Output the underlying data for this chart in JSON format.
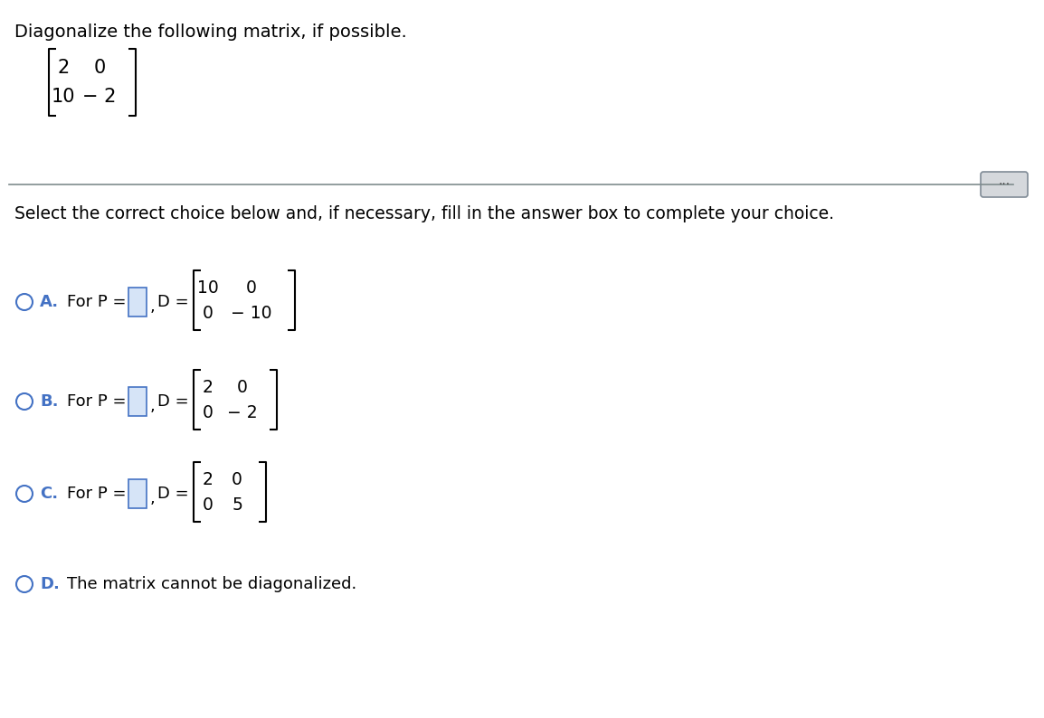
{
  "title": "Diagonalize the following matrix, if possible.",
  "select_text": "Select the correct choice below and, if necessary, fill in the answer box to complete your choice.",
  "input_matrix": [
    [
      "2",
      "0"
    ],
    [
      "10",
      "− 2"
    ]
  ],
  "choices": [
    {
      "letter": "A.",
      "text": "For P =",
      "matrix": [
        [
          "10",
          "0"
        ],
        [
          "0",
          "− 10"
        ]
      ]
    },
    {
      "letter": "B.",
      "text": "For P =",
      "matrix": [
        [
          "2",
          "0"
        ],
        [
          "0",
          "− 2"
        ]
      ]
    },
    {
      "letter": "C.",
      "text": "For P =",
      "matrix": [
        [
          "2",
          "0"
        ],
        [
          "0",
          "5"
        ]
      ]
    },
    {
      "letter": "D.",
      "text": "The matrix cannot be diagonalized.",
      "matrix": null
    }
  ],
  "blue_color": "#4472C4",
  "background": "#ffffff",
  "text_color": "#000000",
  "separator_color": "#7f8c8d",
  "ellipsis_bg": "#d5d8dc",
  "ellipsis_border": "#808b96",
  "box_fill": "#d6e4f7",
  "box_border": "#4472C4"
}
